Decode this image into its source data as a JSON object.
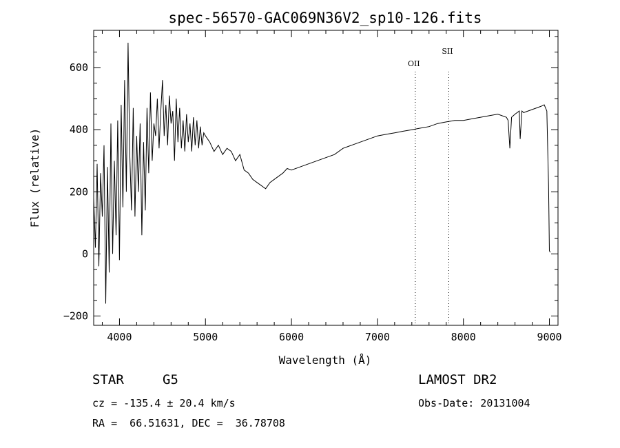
{
  "chart_data": {
    "type": "line",
    "title": "spec-56570-GAC069N36V2_sp10-126.fits",
    "xlabel": "Wavelength (Å)",
    "ylabel": "Flux (relative)",
    "xlim": [
      3700,
      9100
    ],
    "ylim": [
      -230,
      720
    ],
    "xticks": [
      4000,
      5000,
      6000,
      7000,
      8000,
      9000
    ],
    "yticks": [
      -200,
      0,
      200,
      400,
      600
    ],
    "grid": false,
    "series": [
      {
        "x": [
          3700,
          3720,
          3740,
          3760,
          3780,
          3800,
          3820,
          3840,
          3860,
          3880,
          3900,
          3920,
          3940,
          3960,
          3980,
          4000,
          4020,
          4040,
          4060,
          4080,
          4100,
          4120,
          4140,
          4160,
          4180,
          4200,
          4220,
          4240,
          4260,
          4280,
          4300,
          4320,
          4340,
          4360,
          4380,
          4400,
          4420,
          4440,
          4460,
          4480,
          4500,
          4520,
          4540,
          4560,
          4580,
          4600,
          4620,
          4640,
          4660,
          4680,
          4700,
          4720,
          4740,
          4760,
          4780,
          4800,
          4820,
          4840,
          4860,
          4880,
          4900,
          4920,
          4940,
          4960,
          4980,
          5000,
          5050,
          5100,
          5150,
          5200,
          5250,
          5300,
          5350,
          5400,
          5450,
          5500,
          5550,
          5600,
          5650,
          5700,
          5750,
          5800,
          5850,
          5900,
          5950,
          6000,
          6100,
          6200,
          6300,
          6400,
          6500,
          6600,
          6700,
          6800,
          6900,
          7000,
          7100,
          7200,
          7300,
          7400,
          7500,
          7600,
          7700,
          7800,
          7900,
          8000,
          8100,
          8200,
          8300,
          8400,
          8500,
          8520,
          8540,
          8560,
          8600,
          8650,
          8660,
          8680,
          8700,
          8800,
          8850,
          8900,
          8940,
          8970,
          8990,
          9000,
          9010
        ],
        "y": [
          180,
          20,
          290,
          -40,
          260,
          120,
          350,
          -160,
          280,
          -60,
          420,
          0,
          300,
          60,
          430,
          -20,
          480,
          150,
          560,
          200,
          680,
          320,
          140,
          470,
          120,
          380,
          200,
          420,
          60,
          360,
          140,
          470,
          260,
          520,
          300,
          420,
          380,
          500,
          340,
          460,
          560,
          380,
          480,
          350,
          510,
          420,
          460,
          300,
          500,
          360,
          470,
          340,
          430,
          330,
          450,
          360,
          420,
          330,
          440,
          350,
          430,
          340,
          410,
          350,
          390,
          380,
          360,
          330,
          350,
          320,
          340,
          330,
          300,
          320,
          270,
          260,
          240,
          230,
          220,
          210,
          230,
          240,
          250,
          260,
          275,
          270,
          280,
          290,
          300,
          310,
          320,
          340,
          350,
          360,
          370,
          380,
          385,
          390,
          395,
          400,
          405,
          410,
          420,
          425,
          430,
          430,
          435,
          440,
          445,
          450,
          440,
          430,
          340,
          440,
          450,
          460,
          370,
          460,
          455,
          465,
          470,
          475,
          480,
          460,
          220,
          10,
          5
        ]
      }
    ],
    "lines": [
      {
        "label": "OII",
        "x": 7440
      },
      {
        "label": "SII",
        "x": 7830
      }
    ]
  },
  "info": {
    "object_class": "STAR",
    "subclass": "G5",
    "survey": "LAMOST DR2",
    "cz": "cz = -135.4 ± 20.4 km/s",
    "obs_date": "Obs-Date: 20131004",
    "coords": "RA =  66.51631, DEC =  36.78708"
  }
}
